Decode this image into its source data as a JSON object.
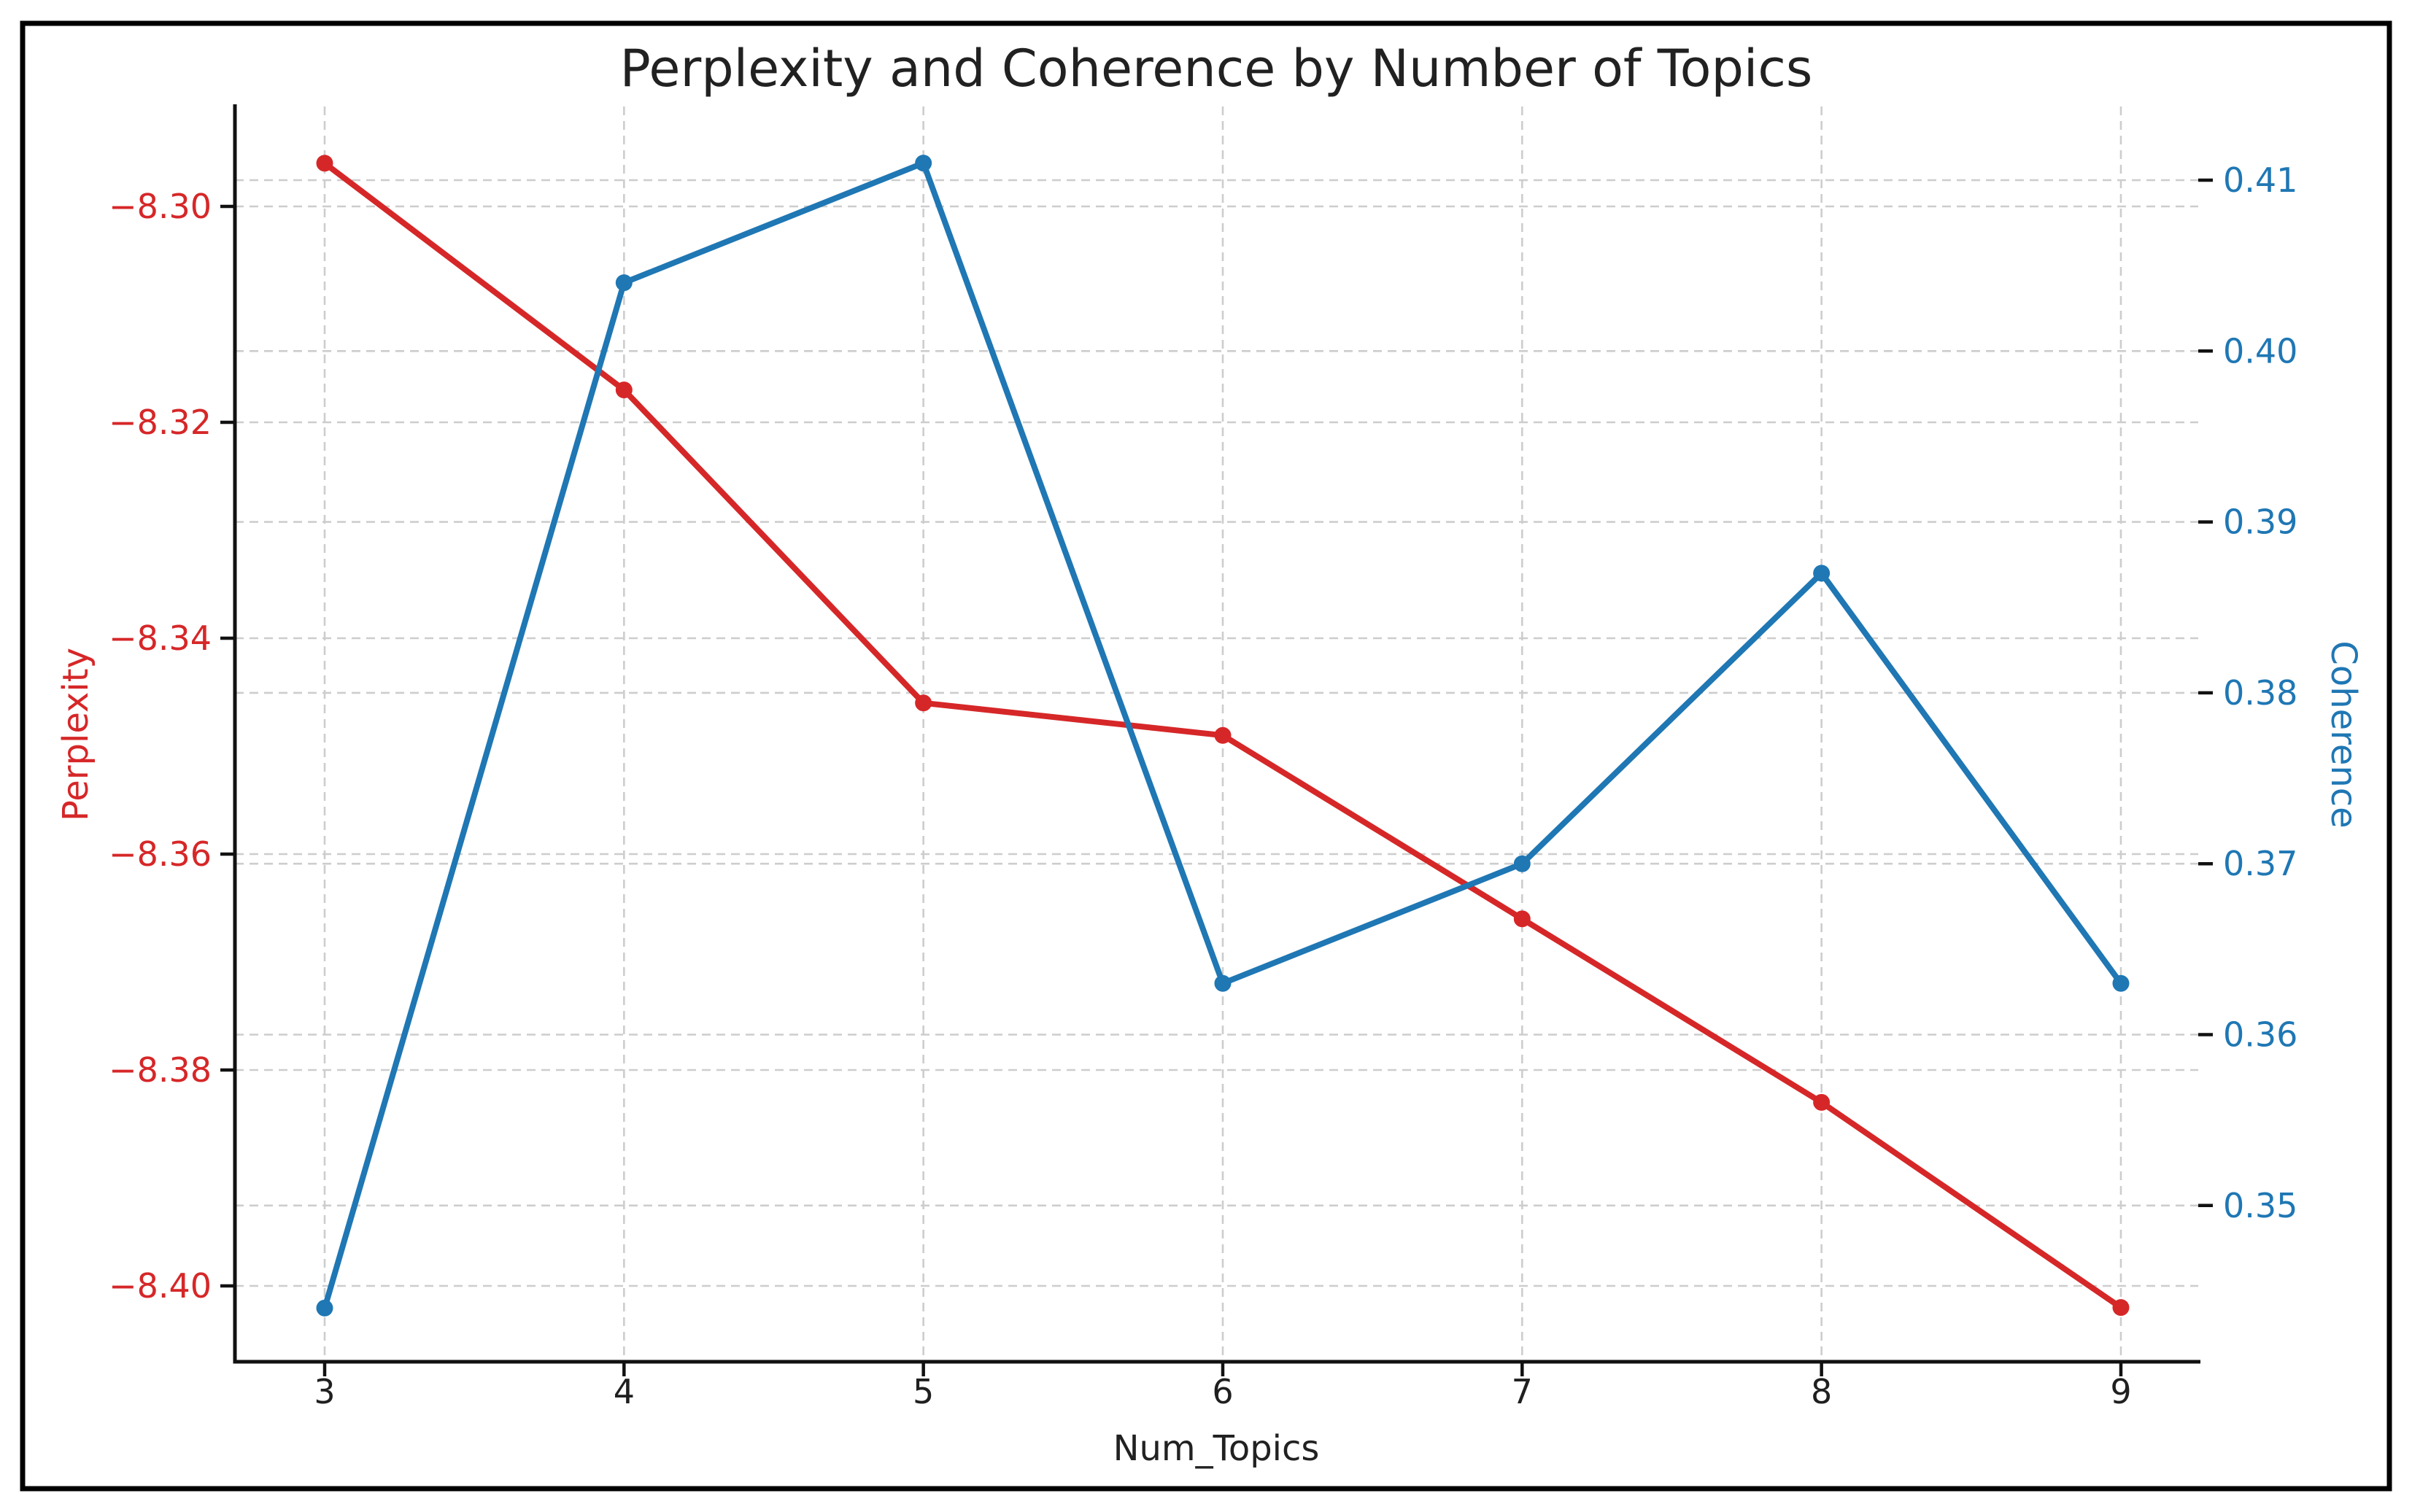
{
  "figure": {
    "background": "#ffffff",
    "border_color": "#000000",
    "text_color": "#212121",
    "grid_color": "#cdcdcd",
    "spine_color": "#111111"
  },
  "chart_data": {
    "type": "line",
    "title": "Perplexity and Coherence by Number of Topics",
    "xlabel": "Num_Topics",
    "ylabel_left": "Perplexity",
    "ylabel_right": "Coherence",
    "x": [
      3,
      4,
      5,
      6,
      7,
      8,
      9
    ],
    "series": [
      {
        "name": "Perplexity",
        "axis": "left",
        "color": "#d62728",
        "marker": "circle",
        "values": [
          -8.296,
          -8.317,
          -8.346,
          -8.349,
          -8.366,
          -8.383,
          -8.402
        ]
      },
      {
        "name": "Coherence",
        "axis": "right",
        "color": "#1f77b4",
        "marker": "circle",
        "values": [
          0.344,
          0.404,
          0.411,
          0.363,
          0.37,
          0.387,
          0.363
        ]
      }
    ],
    "x_ticks": [
      {
        "v": 3,
        "label": "3"
      },
      {
        "v": 4,
        "label": "4"
      },
      {
        "v": 5,
        "label": "5"
      },
      {
        "v": 6,
        "label": "6"
      },
      {
        "v": 7,
        "label": "7"
      },
      {
        "v": 8,
        "label": "8"
      },
      {
        "v": 9,
        "label": "9"
      }
    ],
    "left_ticks": [
      {
        "v": -8.3,
        "label": "−8.30"
      },
      {
        "v": -8.32,
        "label": "−8.32"
      },
      {
        "v": -8.34,
        "label": "−8.34"
      },
      {
        "v": -8.36,
        "label": "−8.36"
      },
      {
        "v": -8.38,
        "label": "−8.38"
      },
      {
        "v": -8.4,
        "label": "−8.40"
      }
    ],
    "right_ticks": [
      {
        "v": 0.41,
        "label": "0.41"
      },
      {
        "v": 0.4,
        "label": "0.40"
      },
      {
        "v": 0.39,
        "label": "0.39"
      },
      {
        "v": 0.38,
        "label": "0.38"
      },
      {
        "v": 0.37,
        "label": "0.37"
      },
      {
        "v": 0.36,
        "label": "0.36"
      },
      {
        "v": 0.35,
        "label": "0.35"
      }
    ],
    "xlim": [
      2.7,
      9.26
    ],
    "ylim_left": [
      -8.407,
      -8.291
    ],
    "ylim_right": [
      0.341,
      0.414
    ],
    "grid": true,
    "grid_style": "dashed",
    "legend_position": "none"
  }
}
